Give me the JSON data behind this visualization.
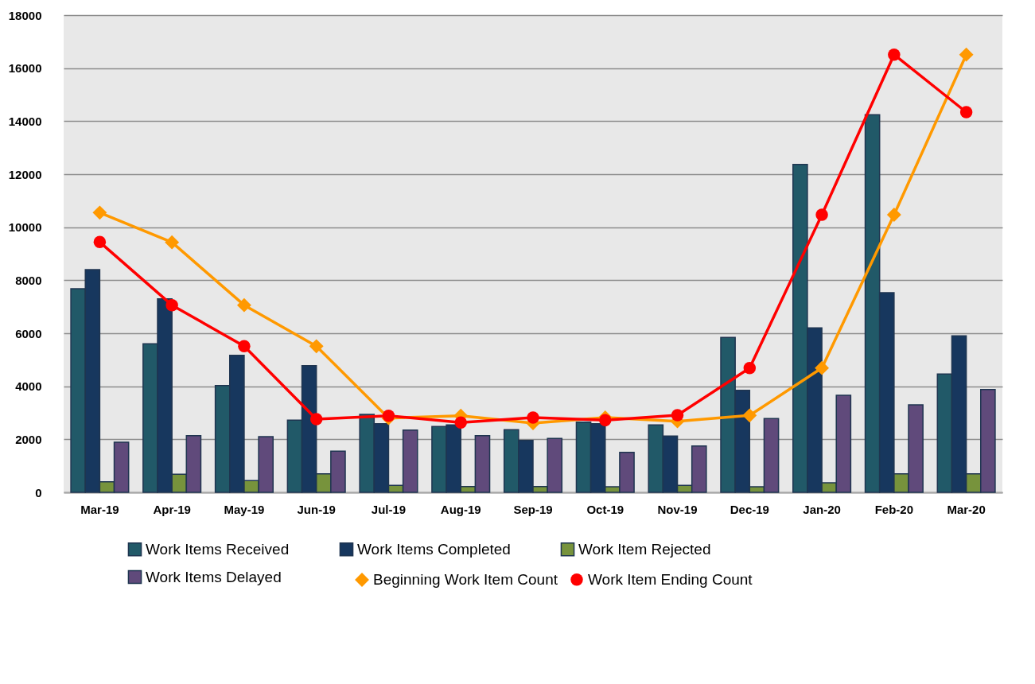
{
  "chart_data": {
    "type": "bar",
    "categories": [
      "Mar-19",
      "Apr-19",
      "May-19",
      "Jun-19",
      "Jul-19",
      "Aug-19",
      "Sep-19",
      "Oct-19",
      "Nov-19",
      "Dec-19",
      "Jan-20",
      "Feb-20",
      "Mar-20"
    ],
    "series": [
      {
        "name": "Work Items Received",
        "color": "#215968",
        "values": [
          7680,
          5600,
          4030,
          2720,
          2940,
          2480,
          2360,
          2650,
          2540,
          5840,
          12370,
          14240,
          4460
        ]
      },
      {
        "name": "Work Items Completed",
        "color": "#17375e",
        "values": [
          8400,
          7300,
          5170,
          4780,
          2590,
          2540,
          1960,
          2590,
          2120,
          3850,
          6200,
          7530,
          5900
        ]
      },
      {
        "name": "Work Item Rejected",
        "color": "#77933c",
        "values": [
          400,
          680,
          440,
          700,
          260,
          220,
          220,
          210,
          260,
          210,
          360,
          700,
          700
        ]
      },
      {
        "name": "Work Items Delayed",
        "color": "#604a7b",
        "values": [
          1890,
          2140,
          2100,
          1550,
          2350,
          2140,
          2030,
          1510,
          1750,
          2780,
          3660,
          3300,
          3880
        ]
      },
      {
        "name": "Beginning Work Item Count",
        "type": "line",
        "marker": "diamond",
        "color": "#ff9900",
        "values": [
          10550,
          9430,
          7060,
          5510,
          2800,
          2890,
          2610,
          2820,
          2680,
          2900,
          4690,
          10470,
          16510
        ]
      },
      {
        "name": "Work Item Ending Count",
        "type": "line",
        "marker": "circle",
        "color": "#ff0000",
        "values": [
          9440,
          7060,
          5510,
          2760,
          2890,
          2630,
          2820,
          2720,
          2910,
          4690,
          10470,
          16510,
          14340
        ]
      }
    ],
    "ylim": [
      0,
      18000
    ],
    "yticks": [
      0,
      2000,
      4000,
      6000,
      8000,
      10000,
      12000,
      14000,
      16000,
      18000
    ],
    "grid": "y",
    "legend": "bottom",
    "line_style": "solid"
  }
}
